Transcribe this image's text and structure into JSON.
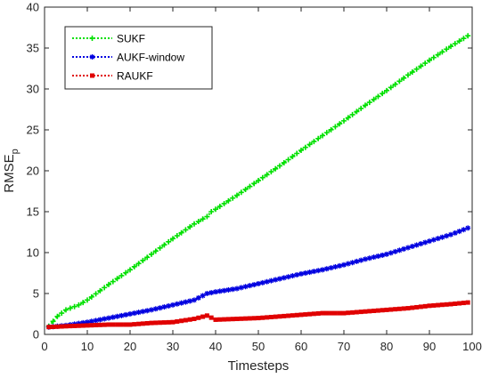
{
  "chart_data": {
    "type": "line",
    "xlabel": "Timesteps",
    "ylabel": {
      "base": "RMSE",
      "sub": "p"
    },
    "xlim": [
      0,
      100
    ],
    "ylim": [
      0,
      40
    ],
    "xticks": [
      0,
      10,
      20,
      30,
      40,
      50,
      60,
      70,
      80,
      90,
      100
    ],
    "yticks": [
      0,
      5,
      10,
      15,
      20,
      25,
      30,
      35,
      40
    ],
    "grid": false,
    "legend_position": "top-left",
    "series": [
      {
        "name": "SUKF",
        "color": "#00e000",
        "marker": "plus",
        "x": [
          1,
          3,
          5,
          8,
          10,
          15,
          20,
          25,
          30,
          35,
          38,
          39,
          40,
          45,
          50,
          55,
          60,
          65,
          70,
          75,
          80,
          85,
          90,
          95,
          99
        ],
        "y": [
          1.0,
          2.2,
          3.0,
          3.6,
          4.2,
          6.1,
          7.9,
          9.8,
          11.7,
          13.5,
          14.4,
          15.0,
          15.3,
          17.0,
          18.8,
          20.6,
          22.5,
          24.3,
          26.1,
          28.0,
          29.8,
          31.7,
          33.5,
          35.2,
          36.5
        ]
      },
      {
        "name": "AUKF-window",
        "color": "#0000e0",
        "marker": "star",
        "x": [
          1,
          5,
          10,
          15,
          20,
          25,
          30,
          35,
          38,
          40,
          45,
          50,
          55,
          60,
          65,
          70,
          75,
          80,
          85,
          90,
          95,
          99
        ],
        "y": [
          0.9,
          1.1,
          1.5,
          2.0,
          2.5,
          3.0,
          3.6,
          4.2,
          5.0,
          5.2,
          5.6,
          6.2,
          6.8,
          7.4,
          7.9,
          8.5,
          9.2,
          9.8,
          10.6,
          11.4,
          12.2,
          13.0
        ]
      },
      {
        "name": "RAUKF",
        "color": "#e00000",
        "marker": "square",
        "x": [
          1,
          5,
          10,
          15,
          20,
          25,
          30,
          35,
          38,
          40,
          45,
          50,
          55,
          60,
          65,
          70,
          75,
          80,
          85,
          90,
          95,
          99
        ],
        "y": [
          0.9,
          1.0,
          1.1,
          1.2,
          1.2,
          1.4,
          1.5,
          1.9,
          2.3,
          1.8,
          1.9,
          2.0,
          2.2,
          2.4,
          2.6,
          2.6,
          2.8,
          3.0,
          3.2,
          3.5,
          3.7,
          3.9
        ]
      }
    ]
  }
}
